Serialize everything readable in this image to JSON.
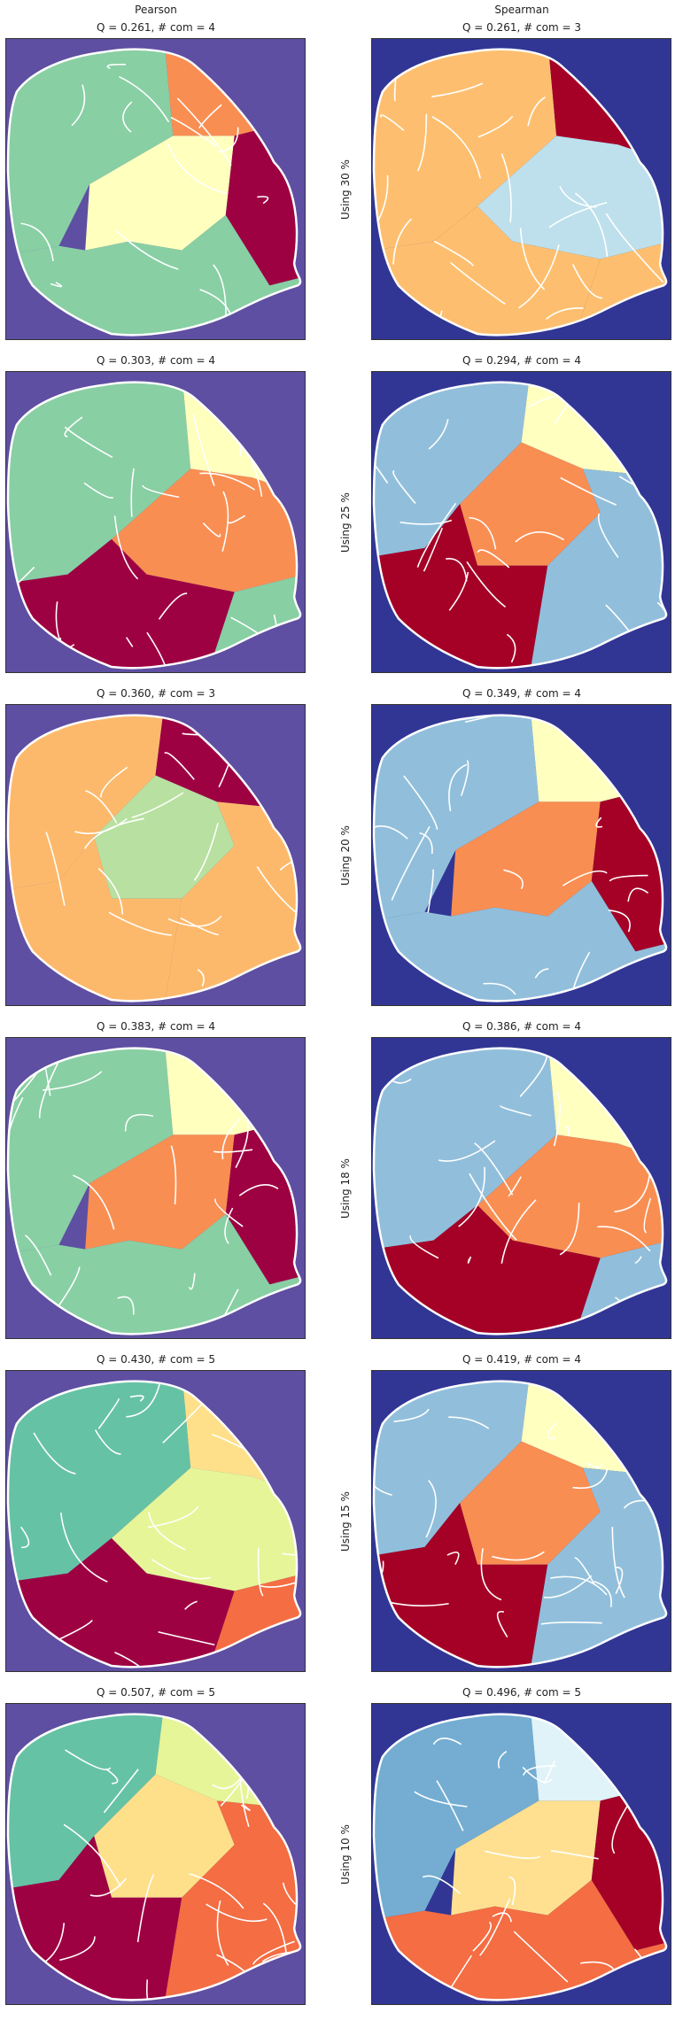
{
  "headers": {
    "left": "Pearson",
    "right": "Spearman"
  },
  "rows": [
    {
      "label": "Using 30 %",
      "left": {
        "title": "Q = 0.261,  # com = 4",
        "bg": "#5e4fa2",
        "colors": [
          "#88cfa4",
          "#f98e52",
          "#ffffbe",
          "#9e0142"
        ]
      },
      "right": {
        "title": "Q = 0.261,  # com = 3",
        "bg": "#313695",
        "colors": [
          "#fdbf6f",
          "#a50026",
          "#bde0ec",
          "#fdbf6f"
        ]
      }
    },
    {
      "label": "Using 25 %",
      "left": {
        "title": "Q = 0.303,  # com = 4",
        "bg": "#5e4fa2",
        "colors": [
          "#88cfa4",
          "#ffffbe",
          "#f98e52",
          "#9e0142"
        ]
      },
      "right": {
        "title": "Q = 0.294,  # com = 4",
        "bg": "#313695",
        "colors": [
          "#91bfdb",
          "#ffffbf",
          "#f98e52",
          "#a50026"
        ]
      }
    },
    {
      "label": "Using 20 %",
      "left": {
        "title": "Q = 0.360,  # com = 3",
        "bg": "#5e4fa2",
        "colors": [
          "#fdb96b",
          "#9e0142",
          "#b8e0a0",
          "#fdb96b"
        ]
      },
      "right": {
        "title": "Q = 0.349,  # com = 4",
        "bg": "#313695",
        "colors": [
          "#91bfdb",
          "#ffffbf",
          "#f98e52",
          "#a50026"
        ]
      }
    },
    {
      "label": "Using 18 %",
      "left": {
        "title": "Q = 0.383,  # com = 4",
        "bg": "#5e4fa2",
        "colors": [
          "#88cfa4",
          "#ffffbe",
          "#f98e52",
          "#9e0142"
        ]
      },
      "right": {
        "title": "Q = 0.386,  # com = 4",
        "bg": "#313695",
        "colors": [
          "#91bfdb",
          "#ffffbf",
          "#f98e52",
          "#a50026"
        ]
      }
    },
    {
      "label": "Using 15 %",
      "left": {
        "title": "Q = 0.430,  # com = 5",
        "bg": "#5e4fa2",
        "colors": [
          "#66c2a5",
          "#fee08b",
          "#e6f598",
          "#9e0142",
          "#f46d43"
        ]
      },
      "right": {
        "title": "Q = 0.419,  # com = 4",
        "bg": "#313695",
        "colors": [
          "#91bfdb",
          "#ffffbf",
          "#f98e52",
          "#a50026"
        ]
      }
    },
    {
      "label": "Using 10 %",
      "left": {
        "title": "Q = 0.507,  # com = 5",
        "bg": "#5e4fa2",
        "colors": [
          "#66c2a5",
          "#e6f598",
          "#fee08b",
          "#9e0142",
          "#f46d43"
        ]
      },
      "right": {
        "title": "Q = 0.496,  # com = 5",
        "bg": "#313695",
        "colors": [
          "#74add1",
          "#e0f3f8",
          "#fee090",
          "#a50026",
          "#f46d43"
        ]
      }
    }
  ]
}
